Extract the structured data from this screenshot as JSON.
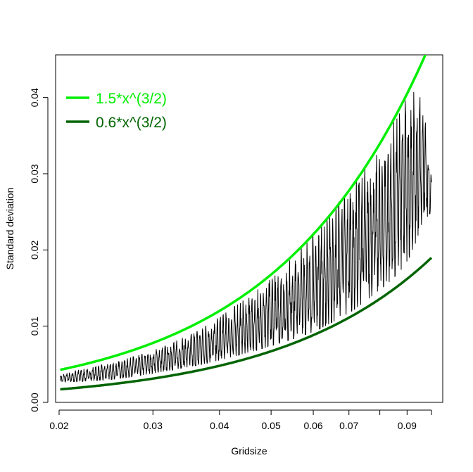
{
  "chart_data": {
    "type": "line",
    "xlabel": "Gridsize",
    "ylabel": "Standard deviation",
    "x_scale": "log",
    "xlim": [
      0.0197,
      0.105
    ],
    "ylim": [
      0.0,
      0.0456
    ],
    "x_ticks": [
      0.02,
      0.03,
      0.04,
      0.05,
      0.06,
      0.07,
      0.08,
      0.09,
      0.1
    ],
    "x_tick_labels": [
      "0.02",
      "0.03",
      "0.04",
      "0.05",
      "0.06",
      "0.07",
      "",
      "0.09",
      ""
    ],
    "y_ticks": [
      0.0,
      0.01,
      0.02,
      0.03,
      0.04
    ],
    "y_tick_labels": [
      "0.00",
      "0.01",
      "0.02",
      "0.03",
      "0.04"
    ],
    "grid": false,
    "legend_position": "top-left",
    "colors": {
      "upper_curve": "#00ee00",
      "lower_curve": "#006400",
      "noisy_series": "#000000"
    },
    "series": [
      {
        "name": "1.5*x^(3/2)",
        "kind": "function",
        "coefficient": 1.5,
        "exponent": 1.5,
        "x_range": [
          0.0201,
          0.1
        ]
      },
      {
        "name": "0.6*x^(3/2)",
        "kind": "function",
        "coefficient": 0.6,
        "exponent": 1.5,
        "x_range": [
          0.0201,
          0.1
        ]
      },
      {
        "kind": "data",
        "x": [
          0.0201,
          0.0215,
          0.023,
          0.025,
          0.027,
          0.03,
          0.033,
          0.036,
          0.04,
          0.044,
          0.048,
          0.052,
          0.056,
          0.06,
          0.064,
          0.068,
          0.072,
          0.076,
          0.08,
          0.084,
          0.088,
          0.092,
          0.096,
          0.1
        ],
        "lower_envelope": [
          0.0026,
          0.0027,
          0.0028,
          0.003,
          0.0033,
          0.0038,
          0.0043,
          0.0048,
          0.0055,
          0.0063,
          0.007,
          0.0078,
          0.0085,
          0.0092,
          0.0102,
          0.0112,
          0.0123,
          0.0135,
          0.0148,
          0.016,
          0.0175,
          0.0195,
          0.0235,
          0.025
        ],
        "upper_envelope": [
          0.0036,
          0.0042,
          0.0046,
          0.0052,
          0.0058,
          0.0068,
          0.008,
          0.0092,
          0.0112,
          0.0132,
          0.0152,
          0.0172,
          0.0198,
          0.022,
          0.0245,
          0.0268,
          0.0295,
          0.031,
          0.033,
          0.036,
          0.039,
          0.041,
          0.04,
          0.031
        ]
      }
    ]
  }
}
